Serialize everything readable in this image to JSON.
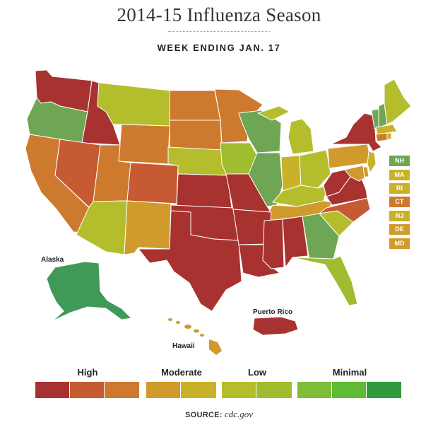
{
  "title": "2014-15 Influenza Season",
  "subtitle": "WEEK ENDING JAN. 17",
  "colors": {
    "high1": "#a8322f",
    "high2": "#c65a32",
    "high3": "#cd7a2f",
    "moderate1": "#d09a2c",
    "moderate2": "#c9b22a",
    "low1": "#b4bd2c",
    "low2": "#9fbd2e",
    "minimal1": "#7ebd37",
    "minimal2": "#5fba34",
    "minimal3": "#2e9b3c",
    "green_state": "#6fa653",
    "alaska": "#3f9a57"
  },
  "map_labels": {
    "alaska": "Alaska",
    "hawaii": "Hawaii",
    "puerto_rico": "Puerto Rico"
  },
  "small_states": [
    {
      "abbr": "NH",
      "level": "green_state"
    },
    {
      "abbr": "MA",
      "level": "moderate2"
    },
    {
      "abbr": "RI",
      "level": "moderate2"
    },
    {
      "abbr": "CT",
      "level": "high3"
    },
    {
      "abbr": "NJ",
      "level": "moderate2"
    },
    {
      "abbr": "DE",
      "level": "moderate1"
    },
    {
      "abbr": "MD",
      "level": "moderate1"
    }
  ],
  "legend": {
    "high": "High",
    "moderate": "Moderate",
    "low": "Low",
    "minimal": "Minimal"
  },
  "source": {
    "label": "SOURCE:",
    "value": "cdc.gov"
  }
}
